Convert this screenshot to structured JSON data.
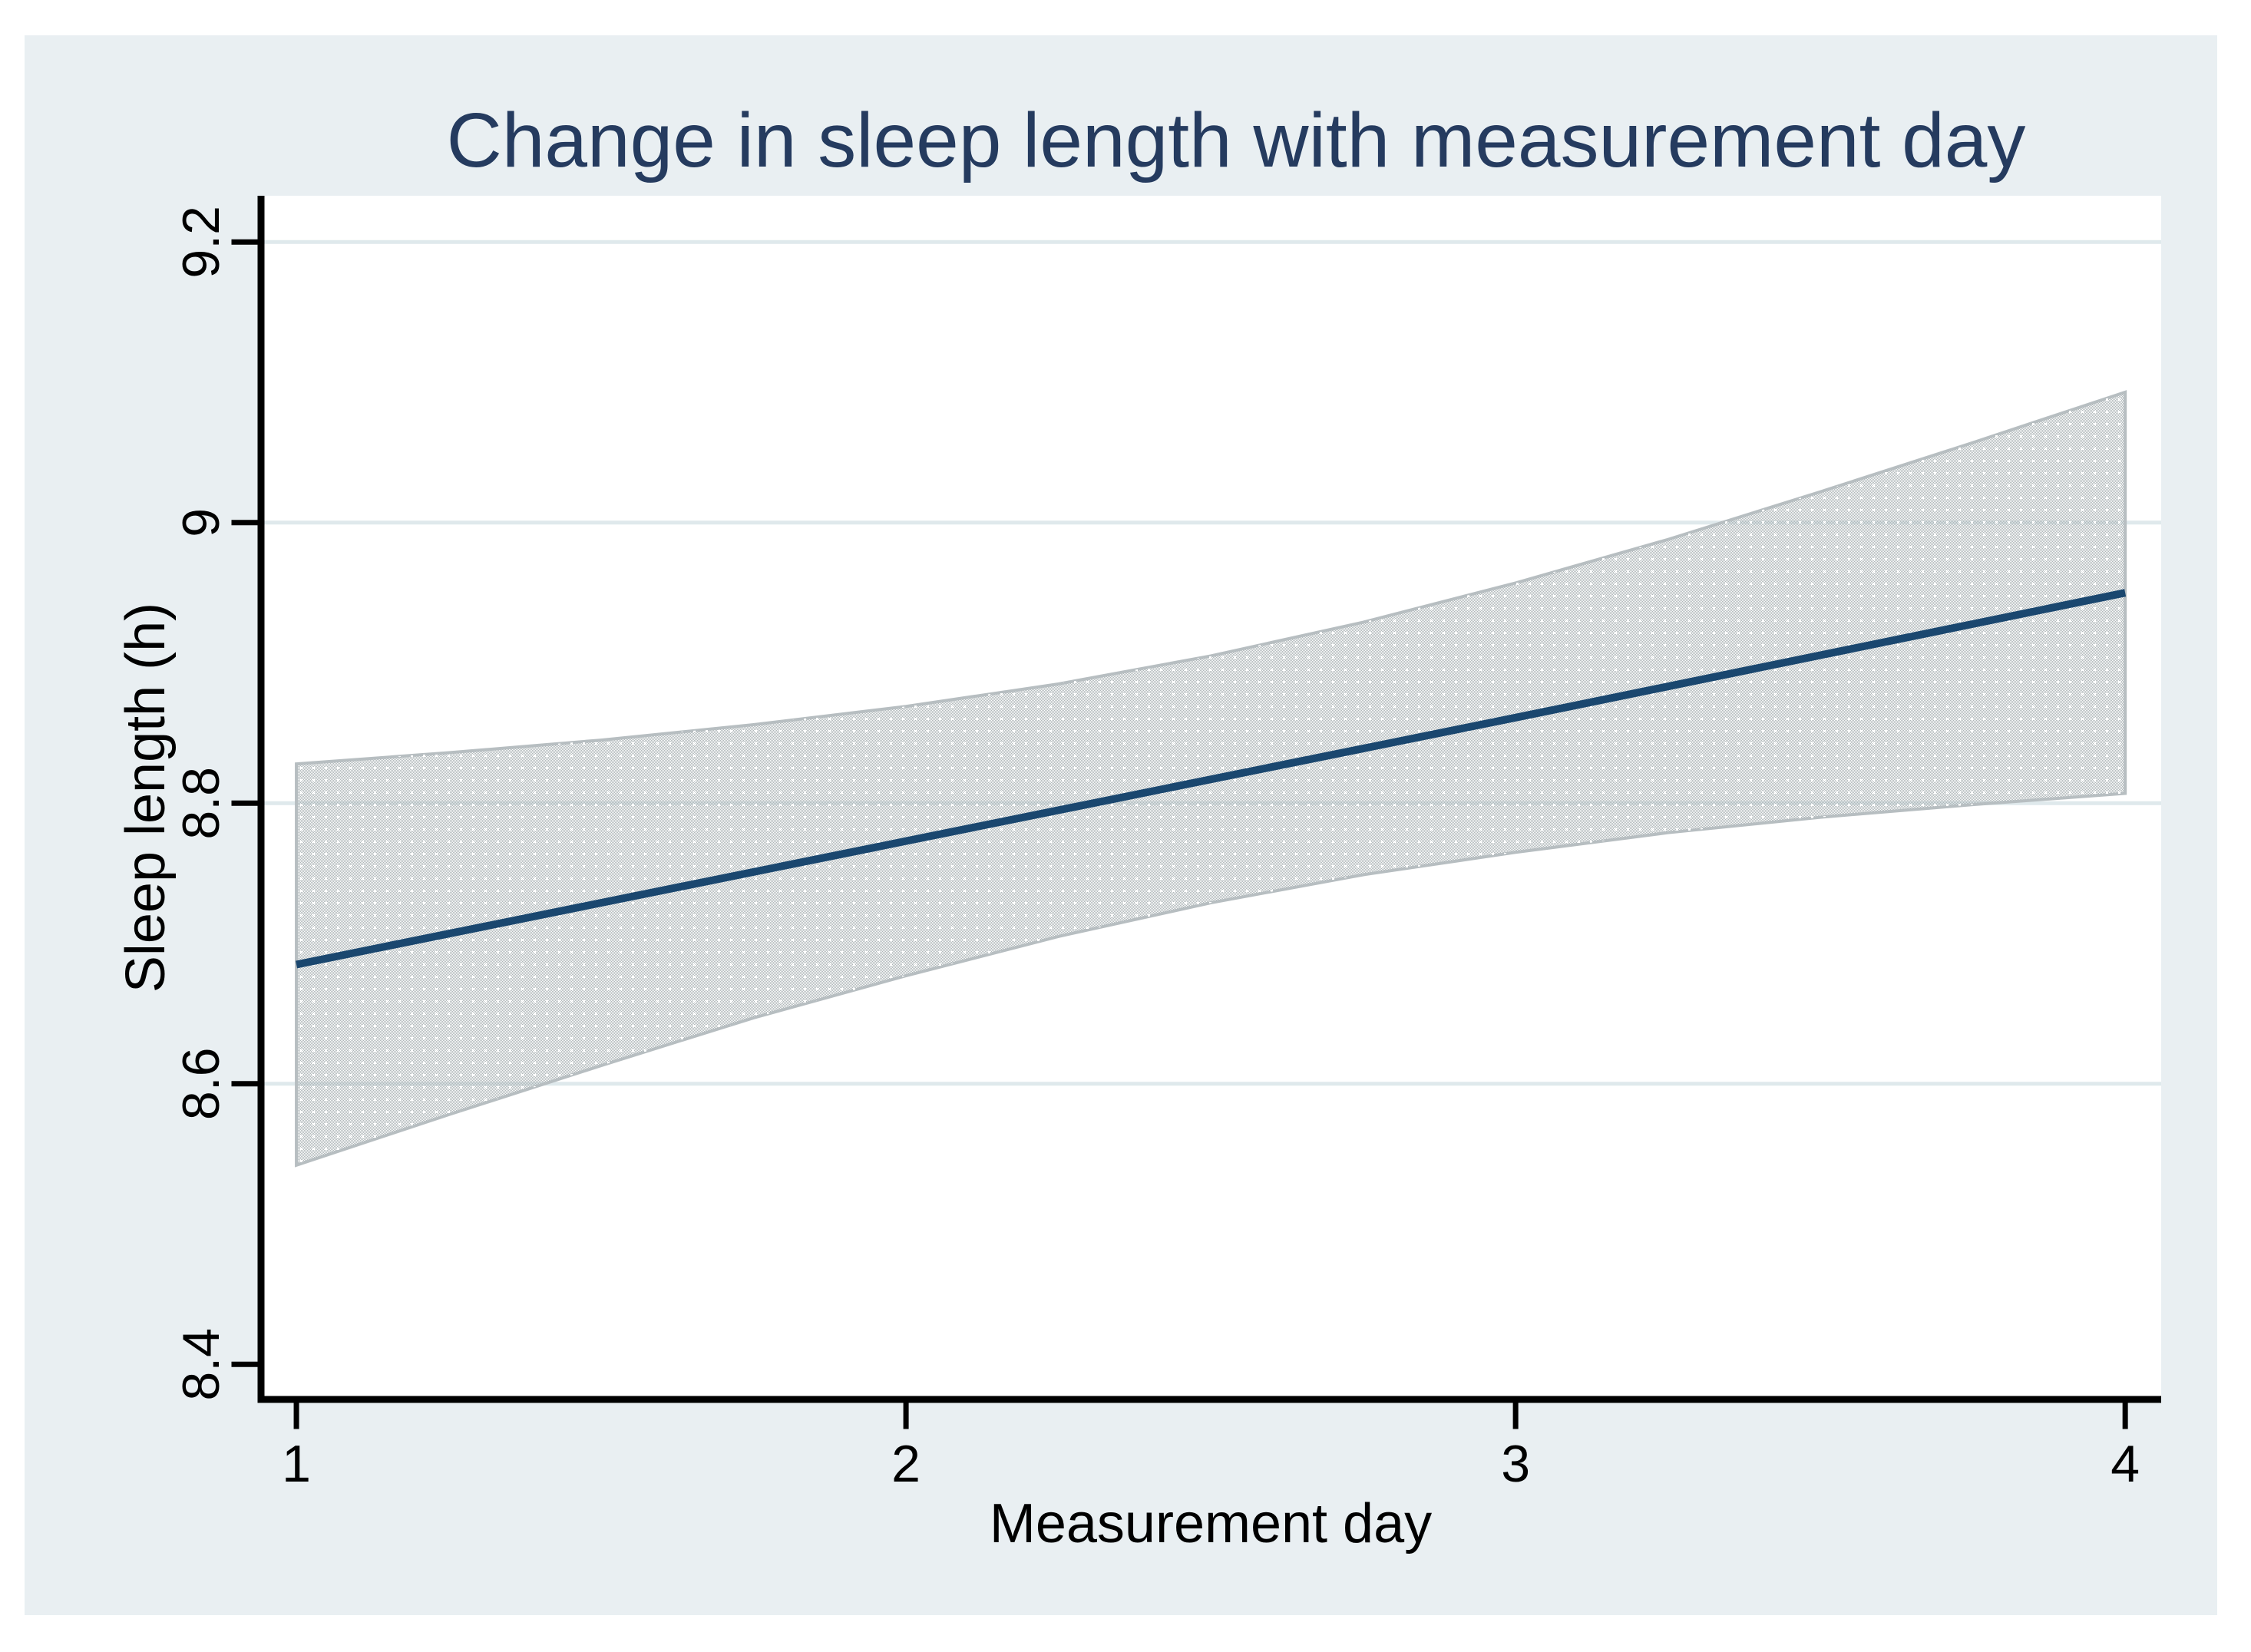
{
  "window": {
    "kind": "statistical-graph",
    "background_color": "#ffffff",
    "graph_region_color": "#e9eff2",
    "plot_area_color": "#ffffff"
  },
  "chart_data": {
    "type": "line",
    "title": "Change in sleep length with measurement day",
    "xlabel": "Measurement day",
    "ylabel": "Sleep length (h)",
    "xlim": [
      0.942,
      4.059
    ],
    "ylim": [
      8.375,
      9.233
    ],
    "grid": "horizontal-only",
    "grid_values": [
      8.6,
      8.8,
      9.0,
      9.2
    ],
    "legend": "none",
    "xticks": [
      {
        "value": 1,
        "label": "1"
      },
      {
        "value": 2,
        "label": "2"
      },
      {
        "value": 3,
        "label": "3"
      },
      {
        "value": 4,
        "label": "4"
      }
    ],
    "yticks": [
      {
        "value": 8.4,
        "label": "8.4"
      },
      {
        "value": 8.6,
        "label": "8.6"
      },
      {
        "value": 8.8,
        "label": "8.8"
      },
      {
        "value": 9.0,
        "label": "9"
      },
      {
        "value": 9.2,
        "label": "9.2"
      }
    ],
    "series": [
      {
        "name": "confidence-band",
        "type": "area",
        "x": [
          1,
          1.25,
          1.5,
          1.75,
          2,
          2.25,
          2.5,
          2.75,
          3,
          3.25,
          3.5,
          3.75,
          4
        ],
        "upper": [
          8.828,
          8.836,
          8.845,
          8.856,
          8.869,
          8.885,
          8.905,
          8.929,
          8.957,
          8.988,
          9.022,
          9.057,
          9.093
        ],
        "lower": [
          8.542,
          8.578,
          8.613,
          8.647,
          8.677,
          8.705,
          8.729,
          8.749,
          8.765,
          8.779,
          8.79,
          8.799,
          8.807
        ]
      },
      {
        "name": "linear-fit",
        "type": "line",
        "x": [
          1,
          2,
          3,
          4
        ],
        "y": [
          8.685,
          8.773,
          8.861,
          8.95
        ]
      }
    ]
  },
  "colors": {
    "title_text": "#253b5f",
    "fit_line": "#1a476f",
    "band_checker": "#aeb6b8",
    "band_edge": "#b7bec1",
    "band_dot": "#ffffff",
    "gridline": "#dfe9ec",
    "axis": "#000000",
    "tick_label_text": "#000000"
  }
}
